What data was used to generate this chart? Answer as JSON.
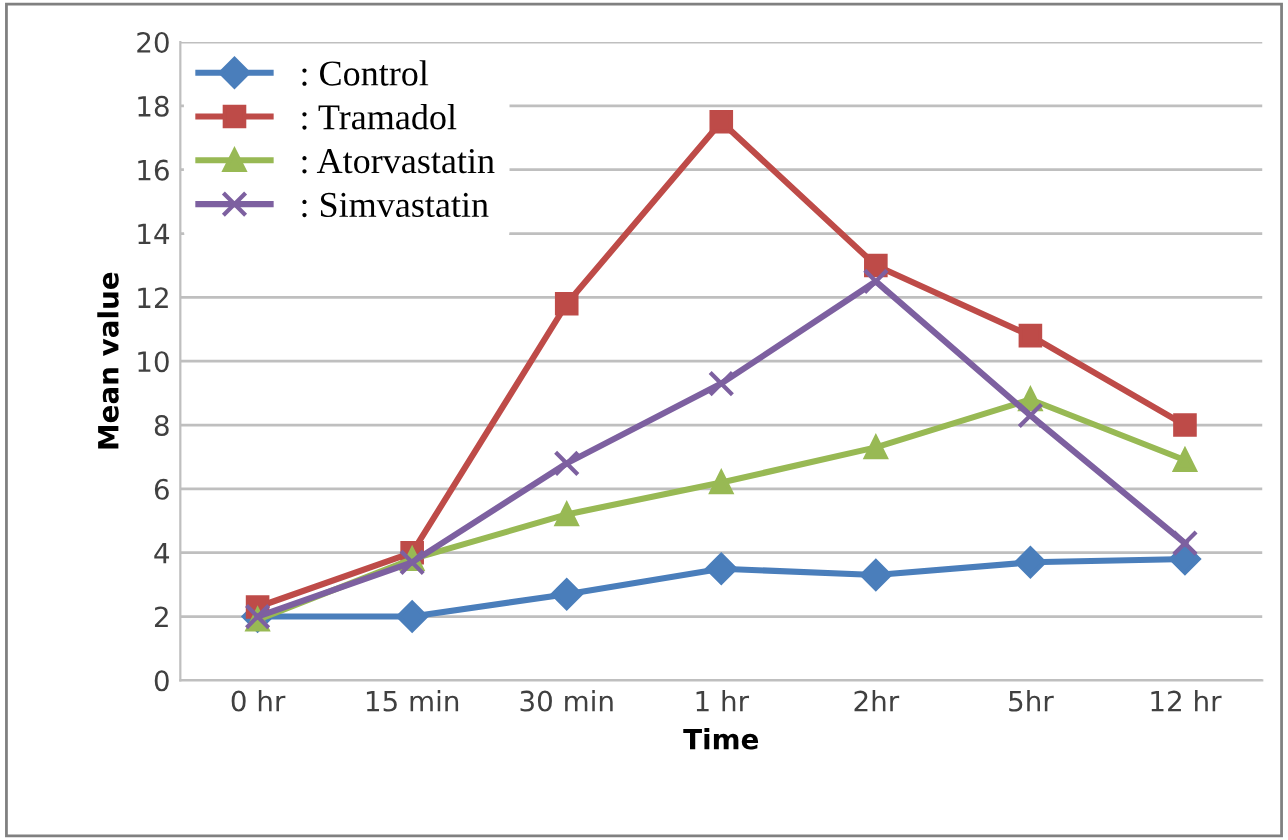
{
  "chart_data": {
    "type": "line",
    "xlabel": "Time",
    "ylabel": "Mean value",
    "categories": [
      "0 hr",
      "15 min",
      "30 min",
      "1 hr",
      "2hr",
      "5hr",
      "12 hr"
    ],
    "series": [
      {
        "name": ": Control",
        "color": "#4a7ebb",
        "marker": "diamond",
        "values": [
          2,
          2,
          2.7,
          3.5,
          3.3,
          3.7,
          3.8
        ]
      },
      {
        "name": ": Tramadol",
        "color": "#be4b48",
        "marker": "square",
        "values": [
          2.3,
          4,
          11.8,
          17.5,
          13,
          10.8,
          8
        ]
      },
      {
        "name": ": Atorvastatin",
        "color": "#98b954",
        "marker": "triangle",
        "values": [
          1.9,
          3.8,
          5.2,
          6.2,
          7.3,
          8.8,
          6.9
        ]
      },
      {
        "name": ": Simvastatin",
        "color": "#7d60a0",
        "marker": "cross",
        "values": [
          2,
          3.7,
          6.8,
          9.3,
          12.5,
          8.3,
          4.3
        ]
      }
    ],
    "ylim": [
      0,
      20
    ],
    "yticks": [
      0,
      2,
      4,
      6,
      8,
      10,
      12,
      14,
      16,
      18,
      20
    ],
    "grid": "y",
    "legend": "top left",
    "line_style": "solid"
  }
}
